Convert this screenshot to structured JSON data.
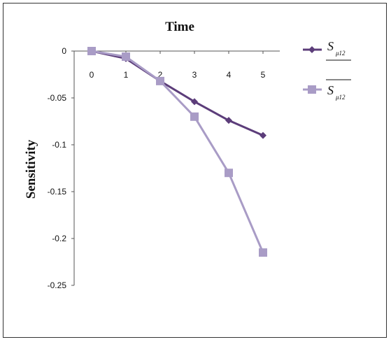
{
  "chart_data": {
    "type": "line",
    "title": "Time",
    "xlabel": "",
    "ylabel": "Sensitivity",
    "categories": [
      "0",
      "1",
      "2",
      "3",
      "4",
      "5"
    ],
    "y_ticks": [
      "0",
      "-0.05",
      "-0.1",
      "-0.15",
      "-0.2",
      "-0.25"
    ],
    "ylim": [
      -0.25,
      0
    ],
    "x_axis_position": "top",
    "grid": false,
    "legend_position": "right",
    "series": [
      {
        "legend_symbol": "S",
        "legend_subscript": "μ12",
        "legend_overline": false,
        "marker": "diamond",
        "color": "#5c3d7a",
        "values": [
          0,
          -0.008,
          -0.032,
          -0.054,
          -0.074,
          -0.09
        ]
      },
      {
        "legend_symbol": "S",
        "legend_subscript": "μ12",
        "legend_overline": true,
        "marker": "square",
        "color": "#a99cc6",
        "values": [
          0,
          -0.006,
          -0.032,
          -0.07,
          -0.13,
          -0.215
        ]
      }
    ]
  }
}
